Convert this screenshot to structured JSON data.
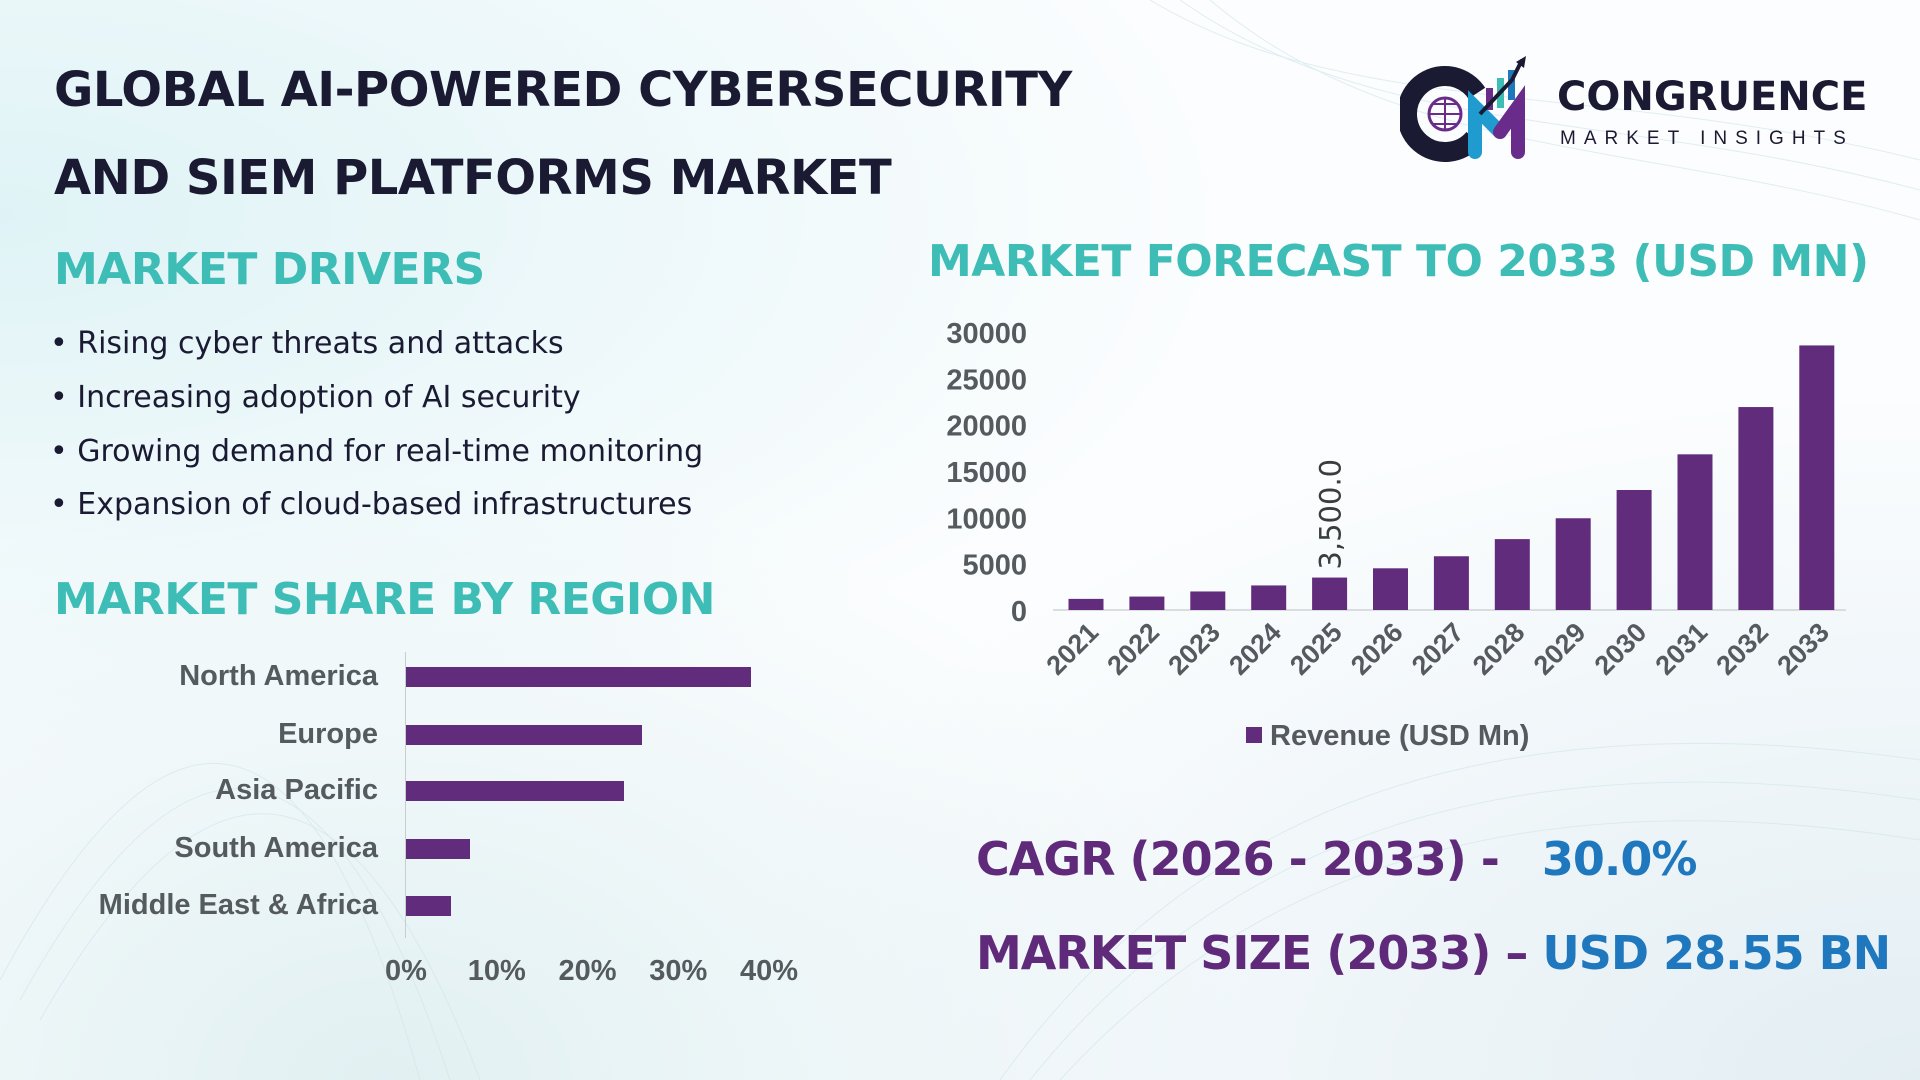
{
  "header": {
    "title_line1": "GLOBAL AI-POWERED CYBERSECURITY",
    "title_line2": "AND SIEM PLATFORMS MARKET",
    "logo": {
      "brand": "CONGRUENCE",
      "tagline": "MARKET INSIGHTS",
      "monogram": "CM"
    }
  },
  "drivers": {
    "heading": "MARKET DRIVERS",
    "items": [
      "Rising cyber threats and attacks",
      "Increasing adoption of AI security",
      "Growing demand for real-time monitoring",
      "Expansion of cloud-based infrastructures"
    ]
  },
  "colors": {
    "bar": "#612c7b",
    "teal": "#3dbdb5",
    "blue": "#1f78bd",
    "purple": "#5f2a7a"
  },
  "chart_data": [
    {
      "type": "bar",
      "orientation": "horizontal",
      "title": "MARKET SHARE BY REGION",
      "categories": [
        "North America",
        "Europe",
        "Asia Pacific",
        "South America",
        "Middle East & Africa"
      ],
      "values": [
        38,
        26,
        24,
        7,
        5
      ],
      "unit": "%",
      "xlim": [
        0,
        40
      ],
      "xticks": [
        "0%",
        "10%",
        "20%",
        "30%",
        "40%"
      ],
      "grid": false
    },
    {
      "type": "bar",
      "title": "MARKET FORECAST TO 2033 (USD MN)",
      "categories": [
        "2021",
        "2022",
        "2023",
        "2024",
        "2025",
        "2026",
        "2027",
        "2028",
        "2029",
        "2030",
        "2031",
        "2032",
        "2033"
      ],
      "series": [
        {
          "name": "Revenue (USD Mn)",
          "values": [
            1200,
            1450,
            2000,
            2650,
            3500,
            4500,
            5800,
            7650,
            9900,
            12950,
            16800,
            21900,
            28550
          ]
        }
      ],
      "data_labels": [
        {
          "category": "2025",
          "text": "3,500.0"
        }
      ],
      "ylim": [
        0,
        30000
      ],
      "yticks": [
        "0",
        "5000",
        "10000",
        "15000",
        "20000",
        "25000",
        "30000"
      ],
      "legend": "bottom",
      "grid": false
    }
  ],
  "kpis": {
    "cagr_label": "CAGR (2026 - 2033) -",
    "cagr_value": "30.0%",
    "size_label": "MARKET SIZE (2033) –",
    "size_value": "USD 28.55 BN"
  }
}
